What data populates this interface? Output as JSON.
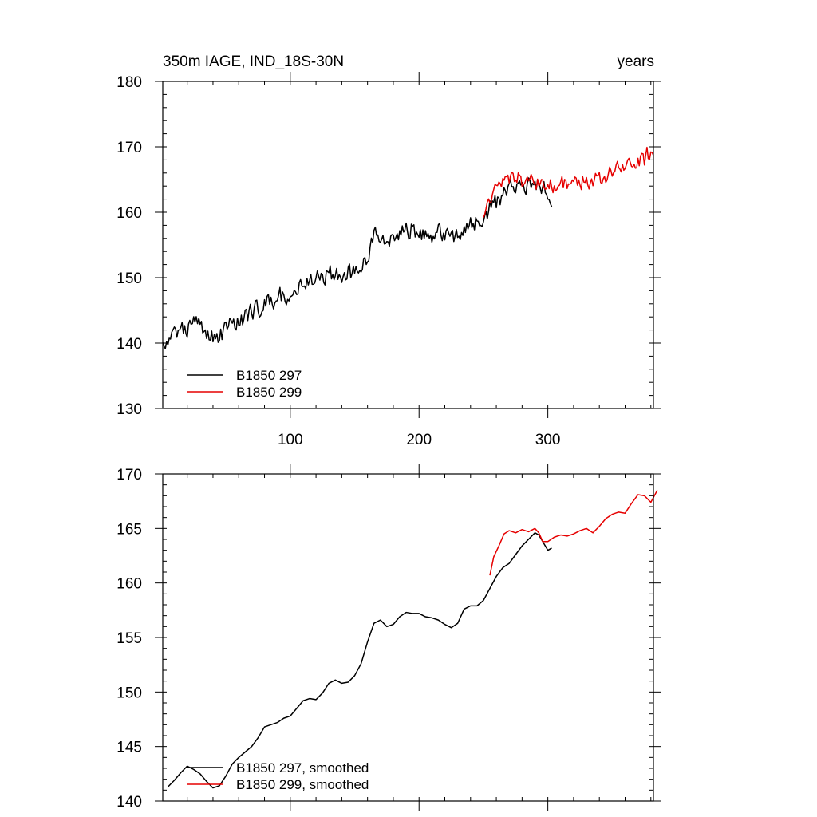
{
  "chart_data": [
    {
      "type": "line",
      "title": "350m IAGE, IND_18S-30N",
      "units": "years",
      "xlim": [
        1,
        382
      ],
      "ylim": [
        130,
        180
      ],
      "xticks": [
        100,
        200,
        300
      ],
      "yticks": [
        130,
        140,
        150,
        160,
        170,
        180
      ],
      "xlabel": "",
      "ylabel": "",
      "legend": "bottom-left",
      "series": [
        {
          "name": "B1850 297",
          "color": "#000000",
          "anchors": [
            [
              1,
              140.5
            ],
            [
              5,
              140.0
            ],
            [
              10,
              142.0
            ],
            [
              15,
              141.5
            ],
            [
              20,
              142.5
            ],
            [
              25,
              143.0
            ],
            [
              30,
              142.5
            ],
            [
              35,
              142.0
            ],
            [
              40,
              141.0
            ],
            [
              45,
              140.8
            ],
            [
              50,
              142.5
            ],
            [
              60,
              143.5
            ],
            [
              70,
              144.5
            ],
            [
              80,
              146.0
            ],
            [
              90,
              147.0
            ],
            [
              100,
              147.5
            ],
            [
              110,
              149.0
            ],
            [
              120,
              150.0
            ],
            [
              130,
              150.5
            ],
            [
              140,
              150.0
            ],
            [
              150,
              151.0
            ],
            [
              160,
              153.5
            ],
            [
              165,
              156.5
            ],
            [
              170,
              156.5
            ],
            [
              175,
              156.0
            ],
            [
              180,
              156.5
            ],
            [
              190,
              157.5
            ],
            [
              200,
              156.8
            ],
            [
              210,
              156.5
            ],
            [
              220,
              157.0
            ],
            [
              225,
              156.0
            ],
            [
              230,
              156.5
            ],
            [
              235,
              157.5
            ],
            [
              240,
              158.0
            ],
            [
              245,
              158.5
            ],
            [
              250,
              159.0
            ],
            [
              255,
              160.5
            ],
            [
              260,
              161.5
            ],
            [
              265,
              162.5
            ],
            [
              270,
              163.5
            ],
            [
              275,
              164.5
            ],
            [
              280,
              164.0
            ],
            [
              285,
              164.5
            ],
            [
              290,
              165.0
            ],
            [
              295,
              163.5
            ],
            [
              303,
              162.5
            ]
          ],
          "noise": 1.3,
          "seed": 297
        },
        {
          "name": "B1850 299",
          "color": "#e60000",
          "anchors": [
            [
              250,
              159.5
            ],
            [
              255,
              162.0
            ],
            [
              260,
              164.0
            ],
            [
              265,
              164.5
            ],
            [
              270,
              165.0
            ],
            [
              275,
              165.5
            ],
            [
              280,
              164.8
            ],
            [
              285,
              164.5
            ],
            [
              290,
              164.8
            ],
            [
              295,
              164.0
            ],
            [
              300,
              164.0
            ],
            [
              310,
              164.5
            ],
            [
              320,
              164.5
            ],
            [
              330,
              164.8
            ],
            [
              340,
              165.2
            ],
            [
              345,
              165.5
            ],
            [
              350,
              166.5
            ],
            [
              355,
              166.5
            ],
            [
              360,
              167.0
            ],
            [
              365,
              167.5
            ],
            [
              370,
              168.0
            ],
            [
              375,
              168.0
            ],
            [
              380,
              169.5
            ],
            [
              382,
              168.5
            ]
          ],
          "noise": 1.1,
          "seed": 299
        }
      ]
    },
    {
      "type": "line",
      "title": "",
      "xlim": [
        1,
        382
      ],
      "ylim": [
        140,
        170
      ],
      "yticks": [
        140,
        145,
        150,
        155,
        160,
        165,
        170
      ],
      "xlabel": "",
      "ylabel": "",
      "legend": "bottom-left",
      "series": [
        {
          "name": "B1850 297, smoothed",
          "color": "#000000",
          "points": [
            [
              5,
              141.3
            ],
            [
              10,
              141.9
            ],
            [
              15,
              142.6
            ],
            [
              20,
              143.2
            ],
            [
              25,
              142.9
            ],
            [
              30,
              142.5
            ],
            [
              35,
              141.8
            ],
            [
              40,
              141.2
            ],
            [
              45,
              141.4
            ],
            [
              50,
              142.3
            ],
            [
              55,
              143.4
            ],
            [
              60,
              144.0
            ],
            [
              65,
              144.5
            ],
            [
              70,
              145.0
            ],
            [
              75,
              145.8
            ],
            [
              80,
              146.8
            ],
            [
              85,
              147.0
            ],
            [
              90,
              147.2
            ],
            [
              95,
              147.6
            ],
            [
              100,
              147.8
            ],
            [
              105,
              148.5
            ],
            [
              110,
              149.2
            ],
            [
              115,
              149.4
            ],
            [
              120,
              149.3
            ],
            [
              125,
              149.9
            ],
            [
              130,
              150.8
            ],
            [
              135,
              151.1
            ],
            [
              140,
              150.8
            ],
            [
              145,
              150.9
            ],
            [
              150,
              151.5
            ],
            [
              155,
              152.6
            ],
            [
              160,
              154.6
            ],
            [
              165,
              156.3
            ],
            [
              170,
              156.6
            ],
            [
              175,
              156.0
            ],
            [
              180,
              156.2
            ],
            [
              185,
              156.9
            ],
            [
              190,
              157.3
            ],
            [
              195,
              157.2
            ],
            [
              200,
              157.2
            ],
            [
              205,
              156.9
            ],
            [
              210,
              156.8
            ],
            [
              215,
              156.6
            ],
            [
              220,
              156.2
            ],
            [
              225,
              155.9
            ],
            [
              230,
              156.3
            ],
            [
              235,
              157.6
            ],
            [
              240,
              157.9
            ],
            [
              245,
              157.9
            ],
            [
              250,
              158.4
            ],
            [
              255,
              159.5
            ],
            [
              260,
              160.6
            ],
            [
              265,
              161.4
            ],
            [
              270,
              161.8
            ],
            [
              275,
              162.6
            ],
            [
              280,
              163.4
            ],
            [
              285,
              164.0
            ],
            [
              290,
              164.6
            ],
            [
              293,
              164.4
            ],
            [
              296,
              163.8
            ],
            [
              300,
              163.0
            ],
            [
              303,
              163.2
            ]
          ]
        },
        {
          "name": "B1850 299, smoothed",
          "color": "#e60000",
          "points": [
            [
              255,
              160.7
            ],
            [
              258,
              162.4
            ],
            [
              262,
              163.4
            ],
            [
              266,
              164.5
            ],
            [
              270,
              164.8
            ],
            [
              275,
              164.6
            ],
            [
              280,
              164.9
            ],
            [
              285,
              164.7
            ],
            [
              290,
              165.0
            ],
            [
              293,
              164.6
            ],
            [
              296,
              163.8
            ],
            [
              300,
              163.8
            ],
            [
              305,
              164.2
            ],
            [
              310,
              164.4
            ],
            [
              315,
              164.3
            ],
            [
              320,
              164.5
            ],
            [
              325,
              164.8
            ],
            [
              330,
              165.0
            ],
            [
              335,
              164.6
            ],
            [
              340,
              165.2
            ],
            [
              345,
              165.9
            ],
            [
              350,
              166.3
            ],
            [
              355,
              166.5
            ],
            [
              360,
              166.4
            ],
            [
              365,
              167.3
            ],
            [
              370,
              168.1
            ],
            [
              375,
              168.0
            ],
            [
              380,
              167.4
            ],
            [
              385,
              168.5
            ]
          ]
        }
      ]
    }
  ]
}
